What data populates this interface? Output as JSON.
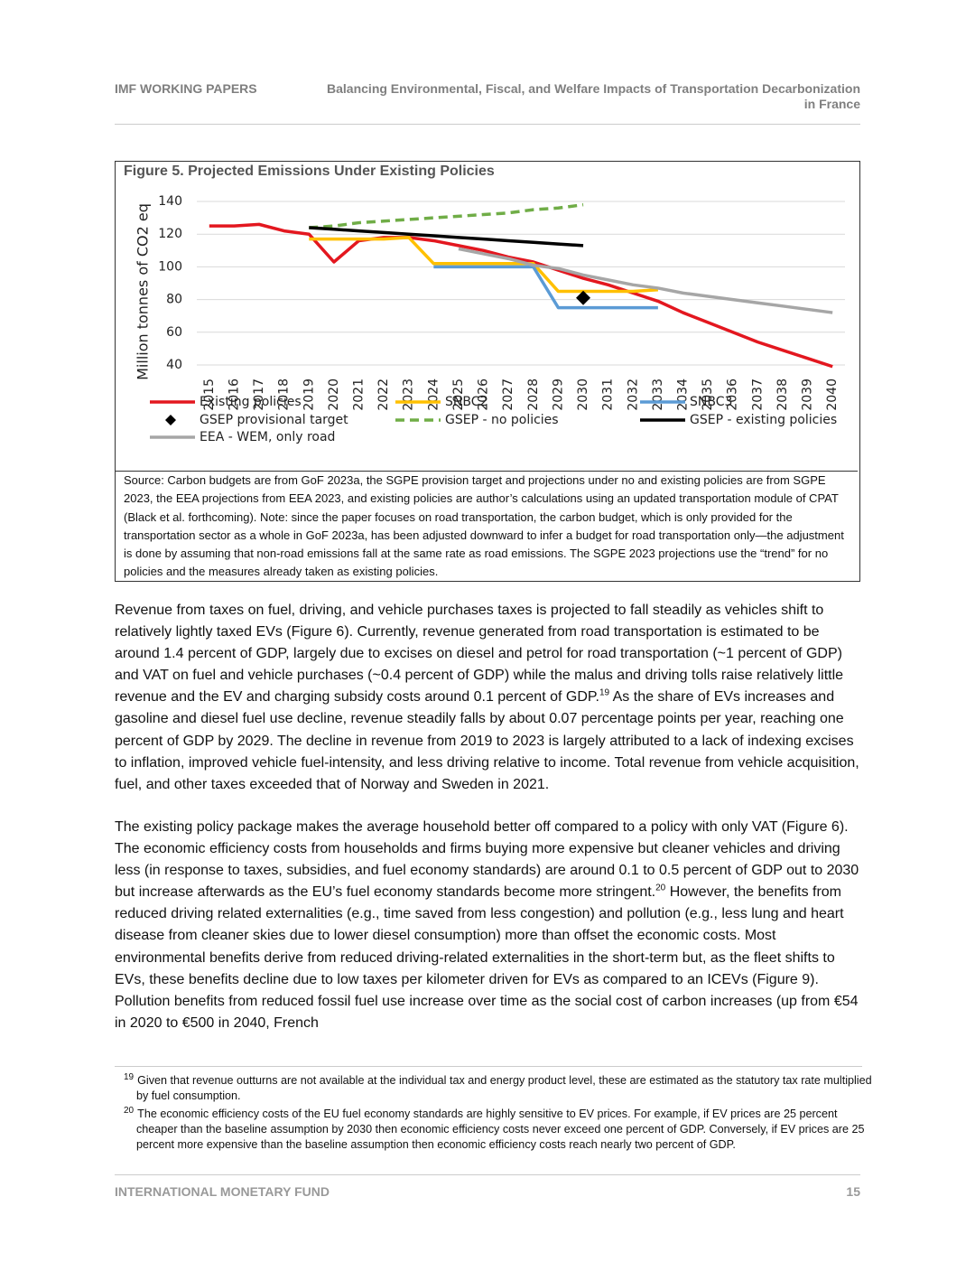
{
  "header": {
    "left": "IMF WORKING PAPERS",
    "title_lines": [
      "Balancing Environmental, Fiscal, and Welfare Impacts of Transportation Decarbonization",
      "in France"
    ]
  },
  "chart_data": {
    "type": "line",
    "title": "Figure 5. Projected Emissions Under Existing Policies",
    "y_label": "Million tonnes of CO2 eq",
    "x": [
      2015,
      2016,
      2017,
      2018,
      2019,
      2020,
      2021,
      2022,
      2023,
      2024,
      2025,
      2026,
      2027,
      2028,
      2029,
      2030,
      2031,
      2032,
      2033,
      2034,
      2035,
      2036,
      2037,
      2038,
      2039,
      2040
    ],
    "xlim": [
      2014.5,
      2040.5
    ],
    "xticks": [
      2015,
      2016,
      2017,
      2018,
      2019,
      2020,
      2021,
      2022,
      2023,
      2024,
      2025,
      2026,
      2027,
      2028,
      2029,
      2030,
      2031,
      2032,
      2033,
      2034,
      2035,
      2036,
      2037,
      2038,
      2039,
      2040
    ],
    "ylim": [
      35,
      145
    ],
    "yticks": [
      40,
      60,
      80,
      100,
      120,
      140
    ],
    "grid": true,
    "legend": "bottom",
    "series": [
      {
        "name": "Existing policies",
        "color": "#e3171f",
        "values": [
          125,
          125,
          126,
          122,
          120,
          103,
          116,
          118,
          118,
          116,
          113,
          110,
          106,
          103,
          98,
          93,
          89,
          84,
          79,
          72,
          66,
          60,
          54,
          49,
          44,
          39
        ]
      },
      {
        "name": "SNBC2",
        "color": "#ffc000",
        "values": [
          null,
          null,
          null,
          null,
          117,
          117,
          117,
          117,
          118,
          102,
          102,
          102,
          102,
          102,
          85,
          85,
          85,
          85,
          86,
          null,
          null,
          null,
          null,
          null,
          null,
          null
        ]
      },
      {
        "name": "SNBC3",
        "color": "#5b9bd5",
        "values": [
          null,
          null,
          null,
          null,
          null,
          null,
          null,
          null,
          null,
          100,
          100,
          100,
          100,
          100,
          75,
          75,
          75,
          75,
          75,
          null,
          null,
          null,
          null,
          null,
          null,
          null
        ]
      },
      {
        "name": "GSEP provisional target",
        "color": "#000000",
        "marker": "diamond",
        "values": [
          null,
          null,
          null,
          null,
          null,
          null,
          null,
          null,
          null,
          null,
          null,
          null,
          null,
          null,
          null,
          81,
          null,
          null,
          null,
          null,
          null,
          null,
          null,
          null,
          null,
          null
        ]
      },
      {
        "name": "GSEP - no policies",
        "color": "#70ad47",
        "line_style": "dashed",
        "values": [
          null,
          null,
          null,
          null,
          124,
          125,
          127,
          128,
          129,
          130,
          131,
          132,
          133,
          135,
          136,
          138,
          null,
          null,
          null,
          null,
          null,
          null,
          null,
          null,
          null,
          null
        ]
      },
      {
        "name": "GSEP - existing policies",
        "color": "#000000",
        "values": [
          null,
          null,
          null,
          null,
          124,
          123,
          122,
          121,
          120,
          119,
          118,
          117,
          116,
          115,
          114,
          113,
          null,
          null,
          null,
          null,
          null,
          null,
          null,
          null,
          null,
          null
        ]
      },
      {
        "name": "EEA - WEM, only road",
        "color": "#a6a6a6",
        "values": [
          null,
          null,
          null,
          null,
          null,
          null,
          null,
          null,
          null,
          null,
          111,
          108,
          105,
          101,
          99,
          95,
          92,
          89,
          87,
          84,
          82,
          80,
          78,
          76,
          74,
          72
        ]
      }
    ],
    "source_note": "Source: Carbon budgets are from GoF 2023a, the SGPE provision target and projections under no and existing policies are from SGPE 2023, the EEA projections from EEA 2023, and existing policies are author’s calculations using an updated transportation module of CPAT (Black et al. forthcoming). Note: since the paper focuses on road transportation, the carbon budget, which is only provided for the transportation sector as a whole in GoF 2023a, has been adjusted downward to infer a budget for road transportation only—the adjustment is done by assuming that non-road emissions fall at the same rate as road emissions. The SGPE 2023 projections use the “trend” for no policies and the measures already taken as existing policies."
  },
  "paragraphs": [
    [
      "Revenue from taxes on fuel, driving, and vehicle purchases taxes is projected to fall steadily as vehicles shift to relatively lightly taxed EVs (Figure 6). Currently, revenue generated from road transportation is estimated to be around 1.4 percent of GDP, largely due to excises on diesel and petrol for road transportation (~1 percent of GDP) and VAT on fuel and vehicle purchases (~0.4 percent of GDP) while the malus and driving tolls raise relatively little revenue and the EV and charging subsidy costs around 0.1 percent of GDP.",
      "19",
      " As the share of EVs increases and gasoline and diesel fuel use decline, revenue steadily falls by about 0.07 percentage points per year, reaching one percent of GDP by 2029. The decline in revenue from 2019 to 2023 is largely attributed to a lack of indexing excises to inflation, improved vehicle fuel-intensity, and less driving relative to income. Total revenue from vehicle acquisition, fuel, and other taxes exceeded that of Norway and Sweden in 2021."
    ],
    [
      "The existing policy package makes the average household better off compared to a policy with only VAT (Figure 6). The economic efficiency costs from households and firms buying more expensive but cleaner vehicles and driving less (in response to taxes, subsidies, and fuel economy standards) are around 0.1 to 0.5 percent of GDP out to 2030 but increase afterwards as the EU’s fuel economy standards become more stringent.",
      "20",
      " However, the benefits from reduced driving related externalities (e.g., time saved from less congestion) and pollution (e.g., less lung and heart disease from cleaner skies due to lower diesel consumption) more than offset the economic costs. Most environmental benefits derive from reduced driving-related externalities in the short-term but, as the fleet shifts to EVs, these benefits decline due to low taxes per kilometer driven for EVs as compared to an ICEVs (Figure 9). Pollution benefits from reduced fossil fuel use increase over time as the social cost of carbon increases (up from €54 in 2020 to €500 in 2040, French"
    ]
  ],
  "footnotes": [
    {
      "number": "19",
      "text": "Given that revenue outturns are not available at the individual tax and energy product level, these are estimated as the statutory tax rate multiplied by fuel consumption."
    },
    {
      "number": "20",
      "text": "The economic efficiency costs of the EU fuel economy standards are highly sensitive to EV prices. For example, if EV prices are 25 percent cheaper than the baseline assumption by 2030 then economic efficiency costs never exceed one percent of GDP. Conversely, if EV prices are 25 percent more expensive than the baseline assumption then economic efficiency costs reach nearly two percent of GDP."
    }
  ],
  "footer": {
    "left": "INTERNATIONAL MONETARY FUND",
    "page": "15"
  }
}
